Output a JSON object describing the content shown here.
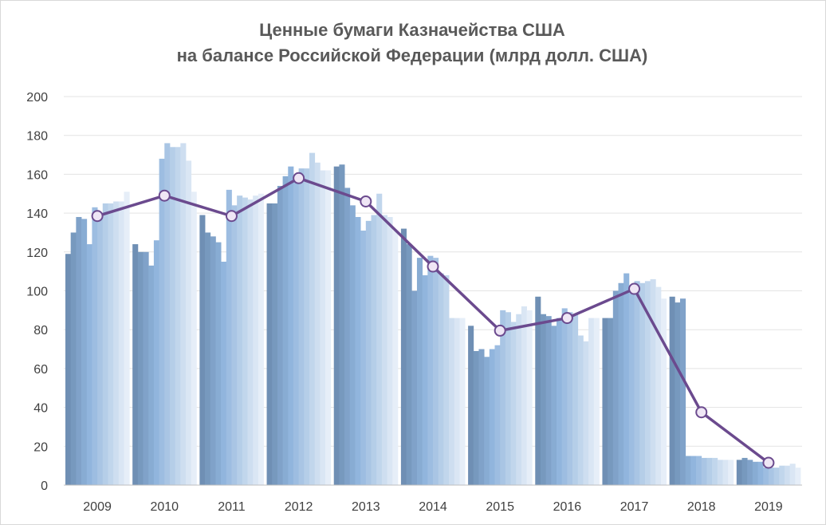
{
  "chart_data": {
    "type": "bar",
    "title": [
      "Ценные бумаги Казначейства США",
      "на балансе Российской Федерации (млрд долл. США)"
    ],
    "xlabel": "",
    "ylabel": "",
    "ylim": [
      0,
      200
    ],
    "yticks": [
      0,
      20,
      40,
      60,
      80,
      100,
      120,
      140,
      160,
      180,
      200
    ],
    "grid": true,
    "legend": "none",
    "categories": [
      "2009",
      "2010",
      "2011",
      "2012",
      "2013",
      "2014",
      "2015",
      "2016",
      "2017",
      "2018",
      "2019"
    ],
    "series": [
      {
        "type": "bar",
        "values": [
          [
            119,
            130,
            138,
            137,
            124,
            143,
            138,
            145,
            145,
            146,
            146,
            151
          ],
          [
            124,
            120,
            120,
            113,
            126,
            168,
            176,
            174,
            174,
            176,
            167,
            151
          ],
          [
            139,
            130,
            128,
            125,
            115,
            152,
            144,
            149,
            148,
            147,
            149,
            150
          ],
          [
            145,
            145,
            154,
            159,
            164,
            158,
            163,
            163,
            171,
            166,
            162,
            162
          ],
          [
            164,
            165,
            153,
            144,
            138,
            131,
            136,
            139,
            150,
            139,
            138,
            131
          ],
          [
            132,
            124,
            100,
            117,
            108,
            118,
            117,
            109,
            108,
            86,
            86,
            86
          ],
          [
            82,
            69,
            70,
            66,
            70,
            72,
            90,
            89,
            84,
            88,
            92,
            90
          ],
          [
            97,
            88,
            87,
            82,
            86,
            91,
            89,
            88,
            77,
            74,
            86,
            86
          ],
          [
            86,
            86,
            100,
            104,
            109,
            102,
            105,
            104,
            105,
            106,
            102,
            96
          ],
          [
            97,
            94,
            96,
            15,
            15,
            15,
            14,
            14,
            14,
            13,
            13,
            13
          ],
          [
            13,
            14,
            13,
            12,
            12,
            9,
            9,
            9,
            10,
            10,
            11,
            9
          ]
        ]
      },
      {
        "type": "line",
        "values": [
          138.5,
          149,
          138.5,
          158,
          146,
          112.5,
          79.5,
          86,
          101,
          37.5,
          11.5
        ]
      }
    ],
    "colors": {
      "bar_dark": "#6f8fb4",
      "bar_mid": "#8fb4dc",
      "bar_light": "#e6eef8",
      "line": "#6b4a8e",
      "marker_fill": "#efe6f5",
      "grid": "#e3e3e3",
      "axis": "#bfbfbf"
    }
  }
}
